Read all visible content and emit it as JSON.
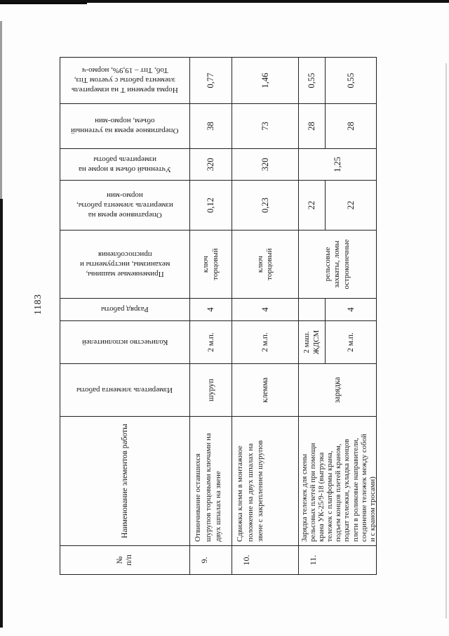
{
  "page_number": "1183",
  "table": {
    "headers": {
      "num": "№\nп/п",
      "name": "Наименование элементов работы",
      "measure": "Измеритель элемента работы",
      "workers": "Количество исполнителей",
      "grade": "Разряд работы",
      "tools": "Применяемые машины,\nмеханизмы, инструменты и\nприспособления",
      "oper_time": "Оперативное время на\nизмеритель элемента работы,\nнормо-мин",
      "volume": "Учтенный объем в норме на\nизмеритель работы",
      "oper_time_total": "Оперативное время на учтенный\nобъем, нормо-мин",
      "norm_time": "Норма времени Т на измеритель\nэлемента работы с учетом Тпз,\nТоб, Тпт – 19,9%, нормо-ч"
    },
    "rows": [
      {
        "num": "9.",
        "name": "Отвинчивание оставшихся\nшурупов торцовыми ключами на\nдвух шпалах на звене",
        "measure": "шуруп",
        "workers": "2 м.п.",
        "grade": "4",
        "tools": "ключ\nторцовый",
        "oper_time": "0,12",
        "volume": "320",
        "oper_time_total": "38",
        "norm_time": "0,77"
      },
      {
        "num": "10.",
        "name": "Сдвижка клемм в монтажное\nположение на двух шпалах на\nзвене с закреплением шурупов",
        "measure": "клемма",
        "workers": "2 м.п.",
        "grade": "4",
        "tools": "ключ\nторцовый",
        "oper_time": "0,23",
        "volume": "320",
        "oper_time_total": "73",
        "norm_time": "1,46"
      },
      {
        "num": "11.",
        "name": "Зарядка тележек для смены\nрельсовых плетей при помощи\nкрана УК-25/9-18 (выгрузка\nтележек с платформы крана,\nподъем концов плетей краном,\nподкат тележки, укладка концов\nплети в роликовые направители,\nсоединение тележек между собой\nи с краном тросами)",
        "measure": "зарядка",
        "tools": "рельсовые\nзахваты, ломы\nостроконечные",
        "volume": "1,25",
        "subrows": [
          {
            "workers": "2 маш.\nЖДСМ",
            "grade": "",
            "oper_time": "22",
            "oper_time_total": "28",
            "norm_time": "0,55"
          },
          {
            "workers": "2 м.п.",
            "grade": "4",
            "oper_time": "22",
            "oper_time_total": "28",
            "norm_time": "0,55"
          }
        ]
      }
    ]
  }
}
